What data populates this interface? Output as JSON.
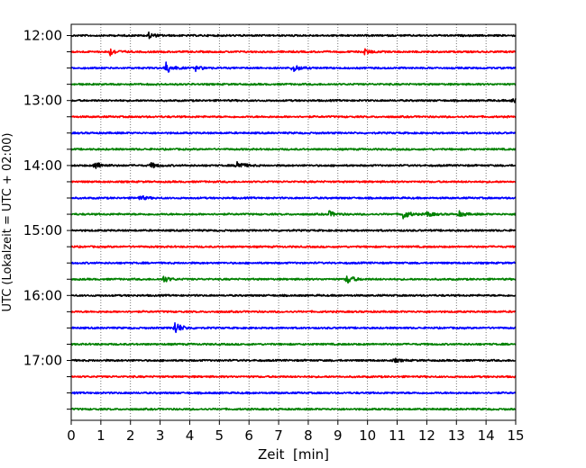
{
  "chart_data": {
    "type": "line",
    "xlabel": "Zeit  [min]",
    "ylabel": "UTC (Lokalzeit = UTC + 02:00)",
    "xlim": [
      0,
      15
    ],
    "x_ticks": [
      "0",
      "1",
      "2",
      "3",
      "4",
      "5",
      "6",
      "7",
      "8",
      "9",
      "10",
      "11",
      "12",
      "13",
      "14",
      "15"
    ],
    "y_ticks": [
      "12:00",
      "13:00",
      "14:00",
      "15:00",
      "16:00",
      "17:00"
    ],
    "trace_start_times": [
      "12:00",
      "12:15",
      "12:30",
      "12:45",
      "13:00",
      "13:15",
      "13:30",
      "13:45",
      "14:00",
      "14:15",
      "14:30",
      "14:45",
      "15:00",
      "15:15",
      "15:30",
      "15:45",
      "16:00",
      "16:15",
      "16:30",
      "16:45",
      "17:00",
      "17:15",
      "17:30",
      "17:45"
    ],
    "trace_colors": [
      "#000000",
      "#ff0000",
      "#0000ff",
      "#008000"
    ],
    "grid": "vertical dotted",
    "events": [
      {
        "trace": 0,
        "minute": 2.6,
        "amplitude": 0.35
      },
      {
        "trace": 1,
        "minute": 1.3,
        "amplitude": 0.45
      },
      {
        "trace": 1,
        "minute": 9.9,
        "amplitude": 0.3
      },
      {
        "trace": 2,
        "minute": 3.2,
        "amplitude": 0.7
      },
      {
        "trace": 2,
        "minute": 4.2,
        "amplitude": 0.3
      },
      {
        "trace": 2,
        "minute": 7.5,
        "amplitude": 0.45
      },
      {
        "trace": 4,
        "minute": 14.9,
        "amplitude": 0.35
      },
      {
        "trace": 8,
        "minute": 0.8,
        "amplitude": 0.5
      },
      {
        "trace": 8,
        "minute": 2.7,
        "amplitude": 0.3
      },
      {
        "trace": 8,
        "minute": 5.6,
        "amplitude": 0.55
      },
      {
        "trace": 10,
        "minute": 2.3,
        "amplitude": 0.3
      },
      {
        "trace": 11,
        "minute": 8.7,
        "amplitude": 0.35
      },
      {
        "trace": 11,
        "minute": 11.2,
        "amplitude": 0.55
      },
      {
        "trace": 11,
        "minute": 12.0,
        "amplitude": 0.3
      },
      {
        "trace": 11,
        "minute": 13.1,
        "amplitude": 0.3
      },
      {
        "trace": 15,
        "minute": 3.1,
        "amplitude": 0.4
      },
      {
        "trace": 15,
        "minute": 9.3,
        "amplitude": 0.6
      },
      {
        "trace": 18,
        "minute": 3.5,
        "amplitude": 0.75
      },
      {
        "trace": 20,
        "minute": 10.9,
        "amplitude": 0.2
      }
    ]
  }
}
